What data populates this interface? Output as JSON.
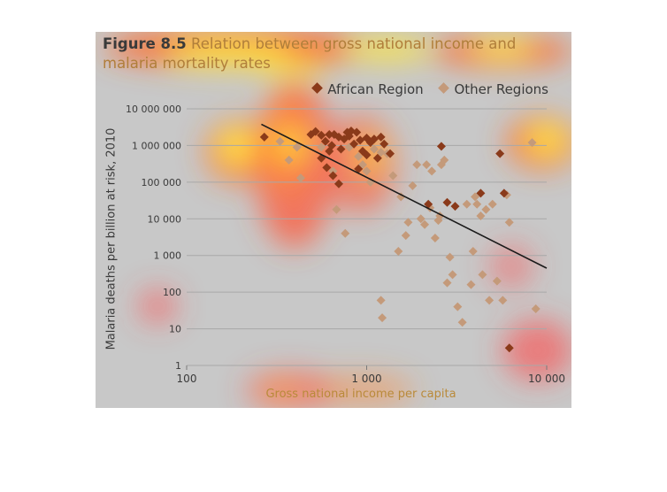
{
  "figure": {
    "label": "Figure 8.5",
    "caption": " Relation between gross national income and malaria mortality rates"
  },
  "colors": {
    "african": "#8a3a1a",
    "other": "#c49a7a",
    "trend": "#1a1a1a",
    "background": "#c8c8c8"
  },
  "chart_data": {
    "type": "scatter",
    "xlabel": "Gross national income per capita",
    "ylabel": "Malaria deaths per billion at risk, 2010",
    "x_scale": "log",
    "y_scale": "log",
    "xlim": [
      100,
      10000
    ],
    "ylim": [
      1,
      10000000
    ],
    "x_ticks": [
      100,
      1000,
      10000
    ],
    "x_tick_labels": [
      "100",
      "1 000",
      "10 000"
    ],
    "y_ticks": [
      1,
      10,
      100,
      1000,
      10000,
      100000,
      1000000,
      10000000
    ],
    "y_tick_labels": [
      "1",
      "10",
      "100",
      "1 000",
      "10 000",
      "100 000",
      "1 000 000",
      "10 000 000"
    ],
    "grid": "horizontal",
    "legend_position": "top-right",
    "series": [
      {
        "name": "African Region",
        "marker": "diamond",
        "points": [
          [
            270,
            1700000
          ],
          [
            490,
            2000000
          ],
          [
            520,
            2400000
          ],
          [
            560,
            1900000
          ],
          [
            590,
            1300000
          ],
          [
            620,
            2000000
          ],
          [
            640,
            1000000
          ],
          [
            660,
            2000000
          ],
          [
            700,
            1700000
          ],
          [
            720,
            800000
          ],
          [
            750,
            1500000
          ],
          [
            780,
            2300000
          ],
          [
            800,
            1800000
          ],
          [
            820,
            2500000
          ],
          [
            850,
            1100000
          ],
          [
            880,
            2300000
          ],
          [
            920,
            1400000
          ],
          [
            950,
            700000
          ],
          [
            1000,
            1600000
          ],
          [
            1050,
            1200000
          ],
          [
            1100,
            1500000
          ],
          [
            1200,
            1700000
          ],
          [
            1250,
            1100000
          ],
          [
            1350,
            600000
          ],
          [
            1150,
            450000
          ],
          [
            1000,
            550000
          ],
          [
            620,
            700000
          ],
          [
            560,
            450000
          ],
          [
            600,
            250000
          ],
          [
            650,
            150000
          ],
          [
            700,
            90000
          ],
          [
            900,
            230000
          ],
          [
            2600,
            950000
          ],
          [
            2200,
            25000
          ],
          [
            2800,
            28000
          ],
          [
            3100,
            22000
          ],
          [
            4300,
            50000
          ],
          [
            5500,
            600000
          ],
          [
            5800,
            50000
          ],
          [
            6200,
            3
          ]
        ]
      },
      {
        "name": "Other Regions",
        "marker": "diamond",
        "points": [
          [
            330,
            1300000
          ],
          [
            370,
            400000
          ],
          [
            410,
            900000
          ],
          [
            430,
            130000
          ],
          [
            560,
            900000
          ],
          [
            650,
            200000
          ],
          [
            680,
            18000
          ],
          [
            760,
            4000
          ],
          [
            800,
            900000
          ],
          [
            900,
            500000
          ],
          [
            950,
            300000
          ],
          [
            1000,
            200000
          ],
          [
            1050,
            100000
          ],
          [
            1100,
            800000
          ],
          [
            1300,
            600000
          ],
          [
            1400,
            150000
          ],
          [
            1550,
            40000
          ],
          [
            1650,
            3500
          ],
          [
            1700,
            8000
          ],
          [
            1800,
            80000
          ],
          [
            1900,
            300000
          ],
          [
            2000,
            10000
          ],
          [
            2100,
            7000
          ],
          [
            2150,
            300000
          ],
          [
            2250,
            20000
          ],
          [
            2300,
            200000
          ],
          [
            2400,
            3000
          ],
          [
            2500,
            9000
          ],
          [
            2550,
            12000
          ],
          [
            2600,
            300000
          ],
          [
            2700,
            400000
          ],
          [
            2800,
            180
          ],
          [
            2900,
            900
          ],
          [
            3000,
            300
          ],
          [
            3200,
            40
          ],
          [
            3400,
            15
          ],
          [
            3600,
            25000
          ],
          [
            3800,
            160
          ],
          [
            3900,
            1300
          ],
          [
            4000,
            40000
          ],
          [
            4100,
            25000
          ],
          [
            4300,
            12000
          ],
          [
            4400,
            300
          ],
          [
            4600,
            18000
          ],
          [
            4800,
            60
          ],
          [
            5000,
            25000
          ],
          [
            5300,
            200
          ],
          [
            5700,
            60
          ],
          [
            6000,
            45000
          ],
          [
            6200,
            8000
          ],
          [
            8300,
            1200000
          ],
          [
            8700,
            35
          ],
          [
            1200,
            60
          ],
          [
            1220,
            20
          ],
          [
            1500,
            1300
          ],
          [
            1200,
            650000
          ]
        ]
      }
    ],
    "trend_line": {
      "x": [
        260,
        10000
      ],
      "y": [
        3800000,
        450
      ]
    }
  }
}
